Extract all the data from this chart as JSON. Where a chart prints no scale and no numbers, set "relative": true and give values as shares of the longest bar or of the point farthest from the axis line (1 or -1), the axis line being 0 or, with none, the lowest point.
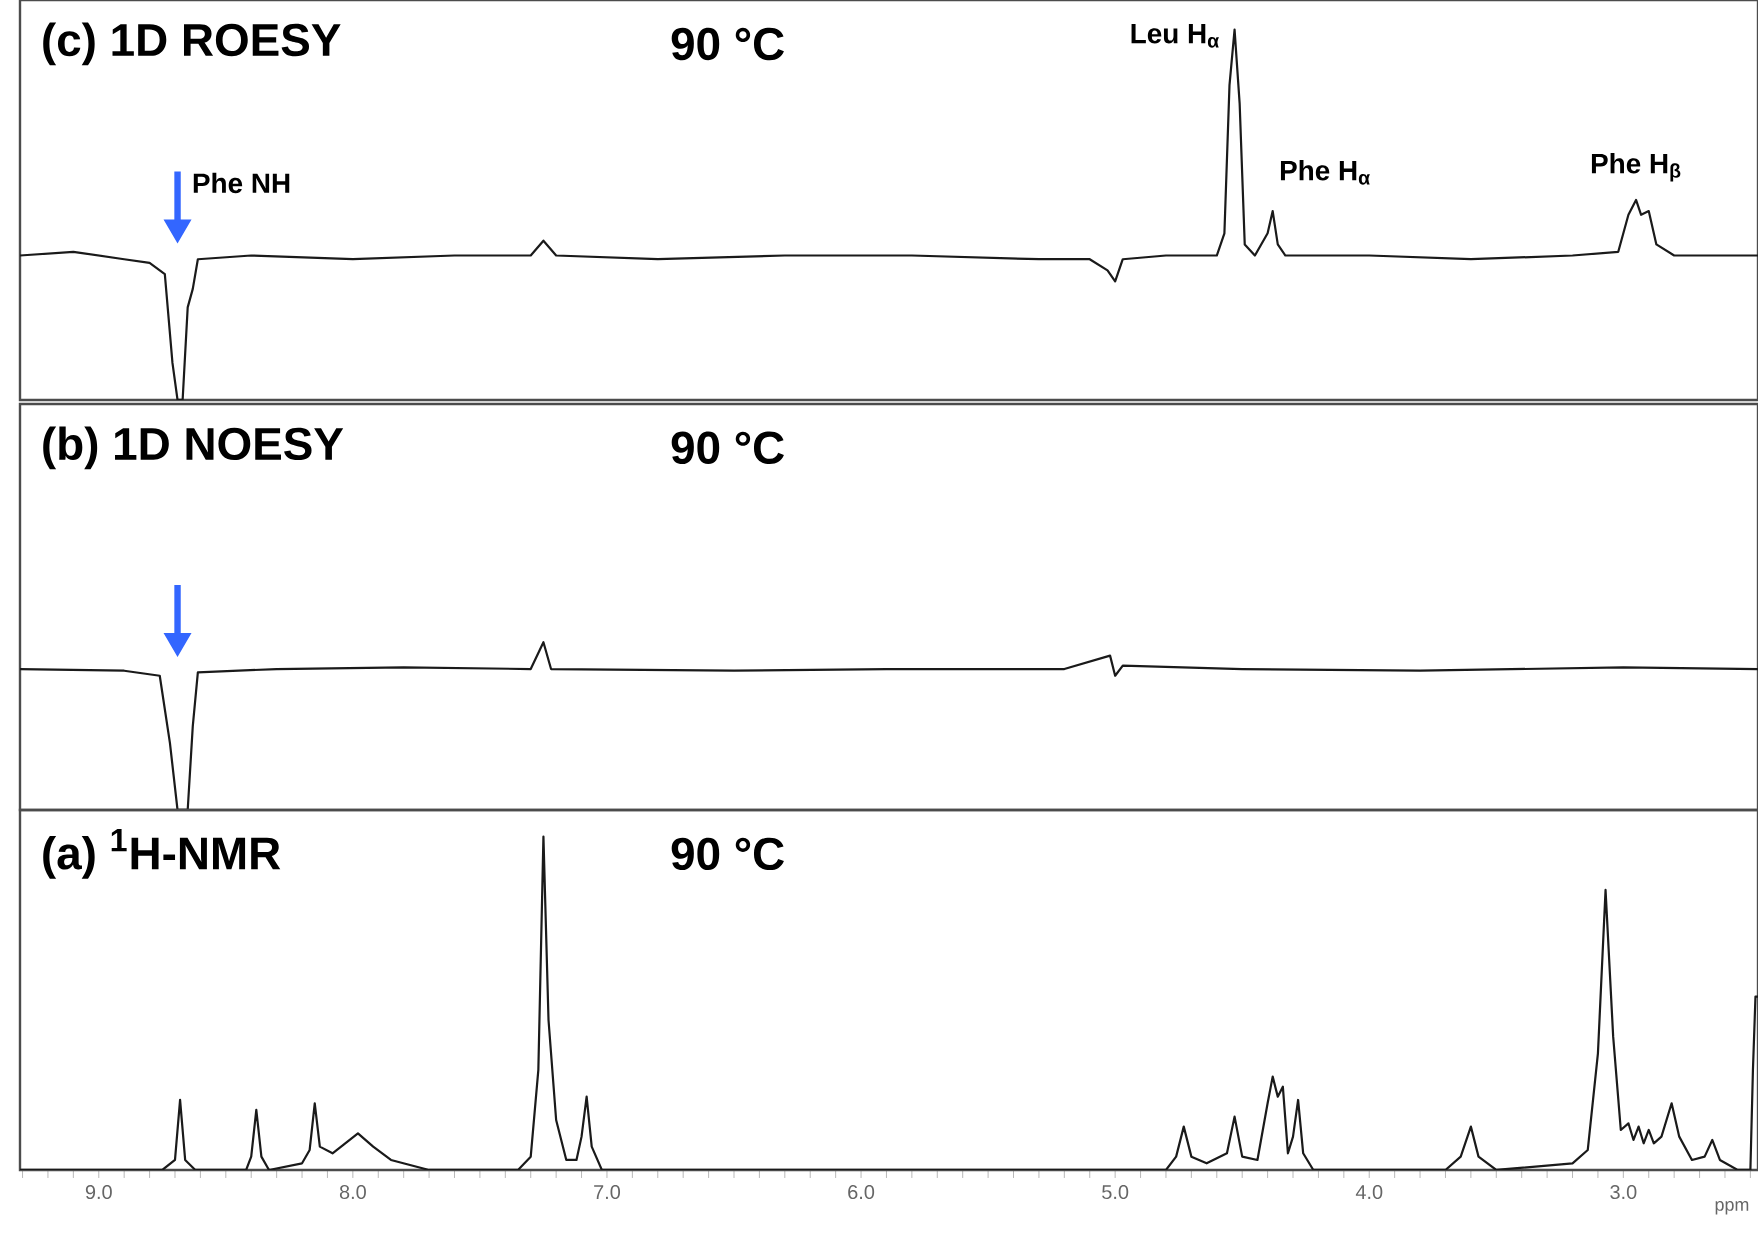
{
  "chart_data": [
    {
      "type": "line",
      "title": "(c) 1D ROESY",
      "subtitle": "90 °C",
      "relative": true,
      "color": "#1a1a1a",
      "xlim": [
        9.31,
        2.47
      ],
      "tick_labels": false,
      "x": [
        9.31,
        9.1,
        8.9,
        8.8,
        8.74,
        8.71,
        8.69,
        8.67,
        8.65,
        8.63,
        8.61,
        8.4,
        8.0,
        7.6,
        7.3,
        7.25,
        7.2,
        6.8,
        6.3,
        5.8,
        5.3,
        5.1,
        5.03,
        5.0,
        4.97,
        4.8,
        4.6,
        4.57,
        4.55,
        4.53,
        4.51,
        4.49,
        4.45,
        4.4,
        4.38,
        4.36,
        4.33,
        4.0,
        3.6,
        3.2,
        3.02,
        2.98,
        2.95,
        2.93,
        2.9,
        2.87,
        2.8,
        2.47
      ],
      "values": [
        0.39,
        0.4,
        0.38,
        0.37,
        0.34,
        0.1,
        0.0,
        0.0,
        0.25,
        0.3,
        0.38,
        0.39,
        0.38,
        0.39,
        0.39,
        0.43,
        0.39,
        0.38,
        0.39,
        0.39,
        0.38,
        0.38,
        0.35,
        0.32,
        0.38,
        0.39,
        0.39,
        0.45,
        0.85,
        1.0,
        0.8,
        0.42,
        0.39,
        0.45,
        0.51,
        0.42,
        0.39,
        0.39,
        0.38,
        0.39,
        0.4,
        0.5,
        0.54,
        0.5,
        0.51,
        0.42,
        0.39,
        0.39
      ],
      "annotations": [
        "Phe NH",
        {
          "text": "Leu H$_{α}$",
          "x": 4.53,
          "y": 1.0
        },
        {
          "text": "Phe H$_{α}$",
          "x": 4.38,
          "y": 0.51
        },
        {
          "text": "Phe H$_{β}$",
          "x": 2.95,
          "y": 0.54
        }
      ]
    },
    {
      "type": "line",
      "title": "(b) 1D NOESY",
      "subtitle": "90 °C",
      "relative": true,
      "color": "#1a1a1a",
      "xlim": [
        9.31,
        2.47
      ],
      "tick_labels": false,
      "x": [
        9.31,
        8.9,
        8.76,
        8.72,
        8.69,
        8.65,
        8.63,
        8.61,
        8.3,
        7.8,
        7.3,
        7.25,
        7.22,
        6.5,
        5.9,
        5.2,
        5.02,
        5.0,
        4.97,
        4.5,
        3.8,
        3.0,
        2.47
      ],
      "values": [
        0.84,
        0.83,
        0.8,
        0.4,
        0.0,
        0.0,
        0.5,
        0.82,
        0.84,
        0.85,
        0.84,
        1.0,
        0.84,
        0.83,
        0.84,
        0.84,
        0.92,
        0.8,
        0.86,
        0.84,
        0.83,
        0.85,
        0.84
      ]
    },
    {
      "type": "line",
      "title": "(a) $^{1}$H-NMR",
      "subtitle": "90 °C",
      "relative": true,
      "color": "#1a1a1a",
      "xlim": [
        9.31,
        2.47
      ],
      "tick_labels": "x",
      "xlabel": "ppm",
      "xticks": [
        {
          "value": 9,
          "label": "9.0"
        },
        {
          "value": 8,
          "label": "8.0"
        },
        {
          "value": 7,
          "label": "7.0"
        },
        {
          "value": 6,
          "label": "6.0"
        },
        {
          "value": 5,
          "label": "5.0"
        },
        {
          "value": 4,
          "label": "4.0"
        },
        {
          "value": 3,
          "label": "3.0"
        },
        {
          "value": 9.3,
          "label": null
        },
        {
          "value": 9.2,
          "label": null
        },
        {
          "value": 9.1,
          "label": null
        },
        {
          "value": 8.9,
          "label": null
        },
        {
          "value": 8.8,
          "label": null
        },
        {
          "value": 8.7,
          "label": null
        },
        {
          "value": 8.6,
          "label": null
        },
        {
          "value": 8.5,
          "label": null
        },
        {
          "value": 8.4,
          "label": null
        },
        {
          "value": 8.3,
          "label": null
        },
        {
          "value": 8.2,
          "label": null
        },
        {
          "value": 8.1,
          "label": null
        },
        {
          "value": 7.9,
          "label": null
        },
        {
          "value": 7.8,
          "label": null
        },
        {
          "value": 7.7,
          "label": null
        },
        {
          "value": 7.6,
          "label": null
        },
        {
          "value": 7.5,
          "label": null
        },
        {
          "value": 7.4,
          "label": null
        },
        {
          "value": 7.3,
          "label": null
        },
        {
          "value": 7.2,
          "label": null
        },
        {
          "value": 7.1,
          "label": null
        },
        {
          "value": 6.9,
          "label": null
        },
        {
          "value": 6.8,
          "label": null
        },
        {
          "value": 6.7,
          "label": null
        },
        {
          "value": 6.6,
          "label": null
        },
        {
          "value": 6.5,
          "label": null
        },
        {
          "value": 6.4,
          "label": null
        },
        {
          "value": 6.3,
          "label": null
        },
        {
          "value": 6.2,
          "label": null
        },
        {
          "value": 6.1,
          "label": null
        },
        {
          "value": 5.9,
          "label": null
        },
        {
          "value": 5.8,
          "label": null
        },
        {
          "value": 5.7,
          "label": null
        },
        {
          "value": 5.6,
          "label": null
        },
        {
          "value": 5.5,
          "label": null
        },
        {
          "value": 5.4,
          "label": null
        },
        {
          "value": 5.3,
          "label": null
        },
        {
          "value": 5.2,
          "label": null
        },
        {
          "value": 5.1,
          "label": null
        },
        {
          "value": 4.9,
          "label": null
        },
        {
          "value": 4.8,
          "label": null
        },
        {
          "value": 4.7,
          "label": null
        },
        {
          "value": 4.6,
          "label": null
        },
        {
          "value": 4.5,
          "label": null
        },
        {
          "value": 4.4,
          "label": null
        },
        {
          "value": 4.3,
          "label": null
        },
        {
          "value": 4.2,
          "label": null
        },
        {
          "value": 4.1,
          "label": null
        },
        {
          "value": 3.9,
          "label": null
        },
        {
          "value": 3.8,
          "label": null
        },
        {
          "value": 3.7,
          "label": null
        },
        {
          "value": 3.6,
          "label": null
        },
        {
          "value": 3.5,
          "label": null
        },
        {
          "value": 3.4,
          "label": null
        },
        {
          "value": 3.3,
          "label": null
        },
        {
          "value": 3.2,
          "label": null
        },
        {
          "value": 3.1,
          "label": null
        },
        {
          "value": 2.9,
          "label": null
        },
        {
          "value": 2.8,
          "label": null
        },
        {
          "value": 2.7,
          "label": null
        },
        {
          "value": 2.6,
          "label": null
        },
        {
          "value": 2.5,
          "label": null
        }
      ],
      "x": [
        9.31,
        8.75,
        8.7,
        8.68,
        8.66,
        8.62,
        8.42,
        8.4,
        8.38,
        8.36,
        8.33,
        8.2,
        8.17,
        8.15,
        8.13,
        8.08,
        8.03,
        7.98,
        7.92,
        7.85,
        7.7,
        7.35,
        7.3,
        7.27,
        7.25,
        7.23,
        7.2,
        7.16,
        7.12,
        7.1,
        7.08,
        7.06,
        7.02,
        6.5,
        5.5,
        4.8,
        4.76,
        4.73,
        4.7,
        4.64,
        4.56,
        4.53,
        4.5,
        4.44,
        4.4,
        4.38,
        4.36,
        4.34,
        4.32,
        4.3,
        4.28,
        4.26,
        4.22,
        3.7,
        3.64,
        3.6,
        3.57,
        3.5,
        3.2,
        3.14,
        3.1,
        3.07,
        3.04,
        3.01,
        2.98,
        2.96,
        2.94,
        2.92,
        2.9,
        2.88,
        2.85,
        2.81,
        2.78,
        2.73,
        2.68,
        2.65,
        2.62,
        2.55,
        2.5,
        2.49,
        2.48,
        2.47
      ],
      "values": [
        0.0,
        0.0,
        0.03,
        0.21,
        0.03,
        0.0,
        0.0,
        0.04,
        0.18,
        0.04,
        0.0,
        0.02,
        0.06,
        0.2,
        0.07,
        0.05,
        0.08,
        0.11,
        0.07,
        0.03,
        0.0,
        0.0,
        0.04,
        0.3,
        1.0,
        0.45,
        0.15,
        0.03,
        0.03,
        0.1,
        0.22,
        0.07,
        0.0,
        0.0,
        0.0,
        0.0,
        0.04,
        0.13,
        0.04,
        0.02,
        0.05,
        0.16,
        0.04,
        0.03,
        0.2,
        0.28,
        0.22,
        0.25,
        0.05,
        0.1,
        0.21,
        0.05,
        0.0,
        0.0,
        0.04,
        0.13,
        0.04,
        0.0,
        0.02,
        0.06,
        0.35,
        0.84,
        0.4,
        0.12,
        0.14,
        0.09,
        0.13,
        0.08,
        0.12,
        0.08,
        0.1,
        0.2,
        0.1,
        0.03,
        0.04,
        0.09,
        0.03,
        0.0,
        0.0,
        0.3,
        0.52,
        0.52
      ]
    }
  ]
}
